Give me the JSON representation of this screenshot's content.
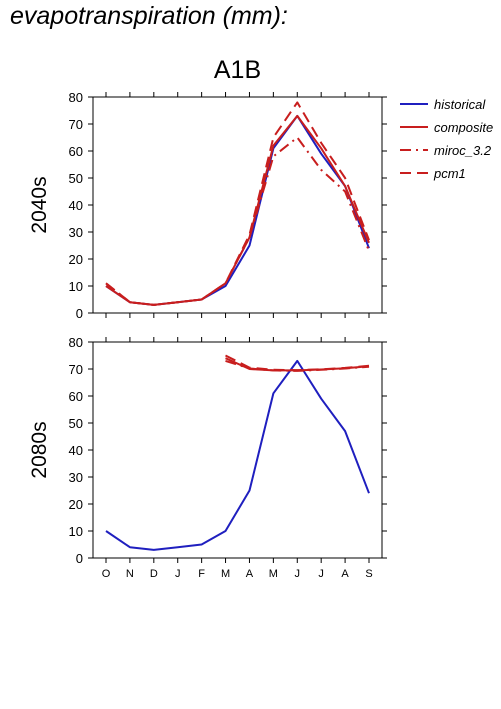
{
  "title": "evapotranspiration (mm):",
  "scenario": "A1B",
  "chart_data": {
    "type": "line",
    "categories": [
      "O",
      "N",
      "D",
      "J",
      "F",
      "M",
      "A",
      "M",
      "J",
      "J",
      "A",
      "S"
    ],
    "ylim": [
      0,
      80
    ],
    "yticks": [
      0,
      10,
      20,
      30,
      40,
      50,
      60,
      70,
      80
    ],
    "legend": {
      "position": "top-right",
      "entries": [
        {
          "name": "historical",
          "color": "#1f1fbf",
          "dash": "solid"
        },
        {
          "name": "composite",
          "color": "#c81e1e",
          "dash": "solid"
        },
        {
          "name": "miroc_3.2",
          "color": "#c81e1e",
          "dash": "dash-dot"
        },
        {
          "name": "pcm1",
          "color": "#c81e1e",
          "dash": "dashed"
        }
      ]
    },
    "panels": [
      {
        "label": "2040s",
        "series": [
          {
            "name": "historical",
            "values": [
              10,
              4,
              3,
              4,
              5,
              10,
              25,
              61,
              73,
              59,
              47,
              24
            ]
          },
          {
            "name": "composite",
            "values": [
              10,
              4,
              3,
              4,
              5,
              11,
              28,
              62,
              73,
              61,
              47,
              26
            ]
          },
          {
            "name": "miroc_3.2",
            "values": [
              11,
              4,
              3,
              4,
              5,
              11,
              28,
              58,
              65,
              53,
              45,
              23
            ]
          },
          {
            "name": "pcm1",
            "values": [
              11,
              4,
              3,
              4,
              5,
              11,
              29,
              65,
              78,
              63,
              50,
              27
            ]
          }
        ]
      },
      {
        "label": "2080s",
        "series": [
          {
            "name": "historical",
            "values": [
              10,
              4,
              3,
              4,
              5,
              10,
              25,
              61,
              73,
              59,
              47,
              24
            ]
          },
          {
            "name": "composite",
            "values": [
              null,
              null,
              null,
              null,
              null,
              74,
              70,
              69.5,
              69.5,
              69.8,
              70.3,
              71
            ]
          },
          {
            "name": "miroc_3.2",
            "values": [
              null,
              null,
              null,
              null,
              null,
              73,
              70.2,
              69.5,
              69.3,
              69.7,
              70.2,
              70.8
            ]
          },
          {
            "name": "pcm1",
            "values": [
              null,
              null,
              null,
              null,
              null,
              75,
              70.5,
              69.7,
              69.6,
              69.9,
              70.4,
              71.2
            ]
          }
        ]
      }
    ]
  }
}
